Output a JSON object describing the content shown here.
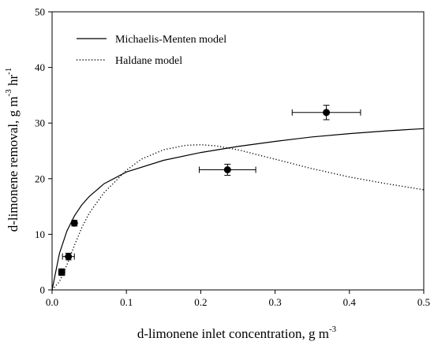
{
  "chart_data": {
    "type": "scatter",
    "xlabel": "d-limonene inlet concentration, g m",
    "xlabel_sup": "-3",
    "ylabel_parts": [
      "d-limonene removal, g m",
      "-3",
      " hr",
      "-1"
    ],
    "xlim": [
      0,
      0.5
    ],
    "ylim": [
      0,
      50
    ],
    "xticks": [
      "0.0",
      "0.1",
      "0.2",
      "0.3",
      "0.4",
      "0.5"
    ],
    "yticks": [
      "0",
      "10",
      "20",
      "30",
      "40",
      "50"
    ],
    "grid": false,
    "legend_position": "top-left",
    "points": [
      {
        "x": 0.013,
        "y": 3.2,
        "xerr": 0.004,
        "yerr": 0.6
      },
      {
        "x": 0.022,
        "y": 6.0,
        "xerr": 0.008,
        "yerr": 0.6
      },
      {
        "x": 0.03,
        "y": 12.0,
        "xerr": 0.003,
        "yerr": 0.5
      },
      {
        "x": 0.236,
        "y": 21.6,
        "xerr": 0.038,
        "yerr": 1.0
      },
      {
        "x": 0.369,
        "y": 31.9,
        "xerr": 0.046,
        "yerr": 1.3
      }
    ],
    "series": [
      {
        "name": "Michaelis-Menten model",
        "style": "solid",
        "x": [
          0,
          0.01,
          0.02,
          0.03,
          0.04,
          0.05,
          0.07,
          0.1,
          0.15,
          0.2,
          0.25,
          0.3,
          0.35,
          0.4,
          0.45,
          0.5
        ],
        "y": [
          0,
          6.6,
          10.6,
          13.3,
          15.3,
          16.8,
          19.1,
          21.2,
          23.3,
          24.7,
          25.8,
          26.7,
          27.5,
          28.1,
          28.6,
          29.0
        ]
      },
      {
        "name": "Haldane model",
        "style": "dotted",
        "x": [
          0,
          0.01,
          0.02,
          0.03,
          0.04,
          0.05,
          0.07,
          0.1,
          0.12,
          0.15,
          0.18,
          0.2,
          0.22,
          0.25,
          0.3,
          0.35,
          0.4,
          0.45,
          0.5
        ],
        "y": [
          0,
          1.5,
          4.5,
          8.0,
          11.2,
          13.8,
          17.5,
          21.5,
          23.5,
          25.2,
          26.0,
          26.1,
          25.9,
          25.2,
          23.5,
          21.8,
          20.3,
          19.1,
          18.0
        ]
      }
    ]
  }
}
